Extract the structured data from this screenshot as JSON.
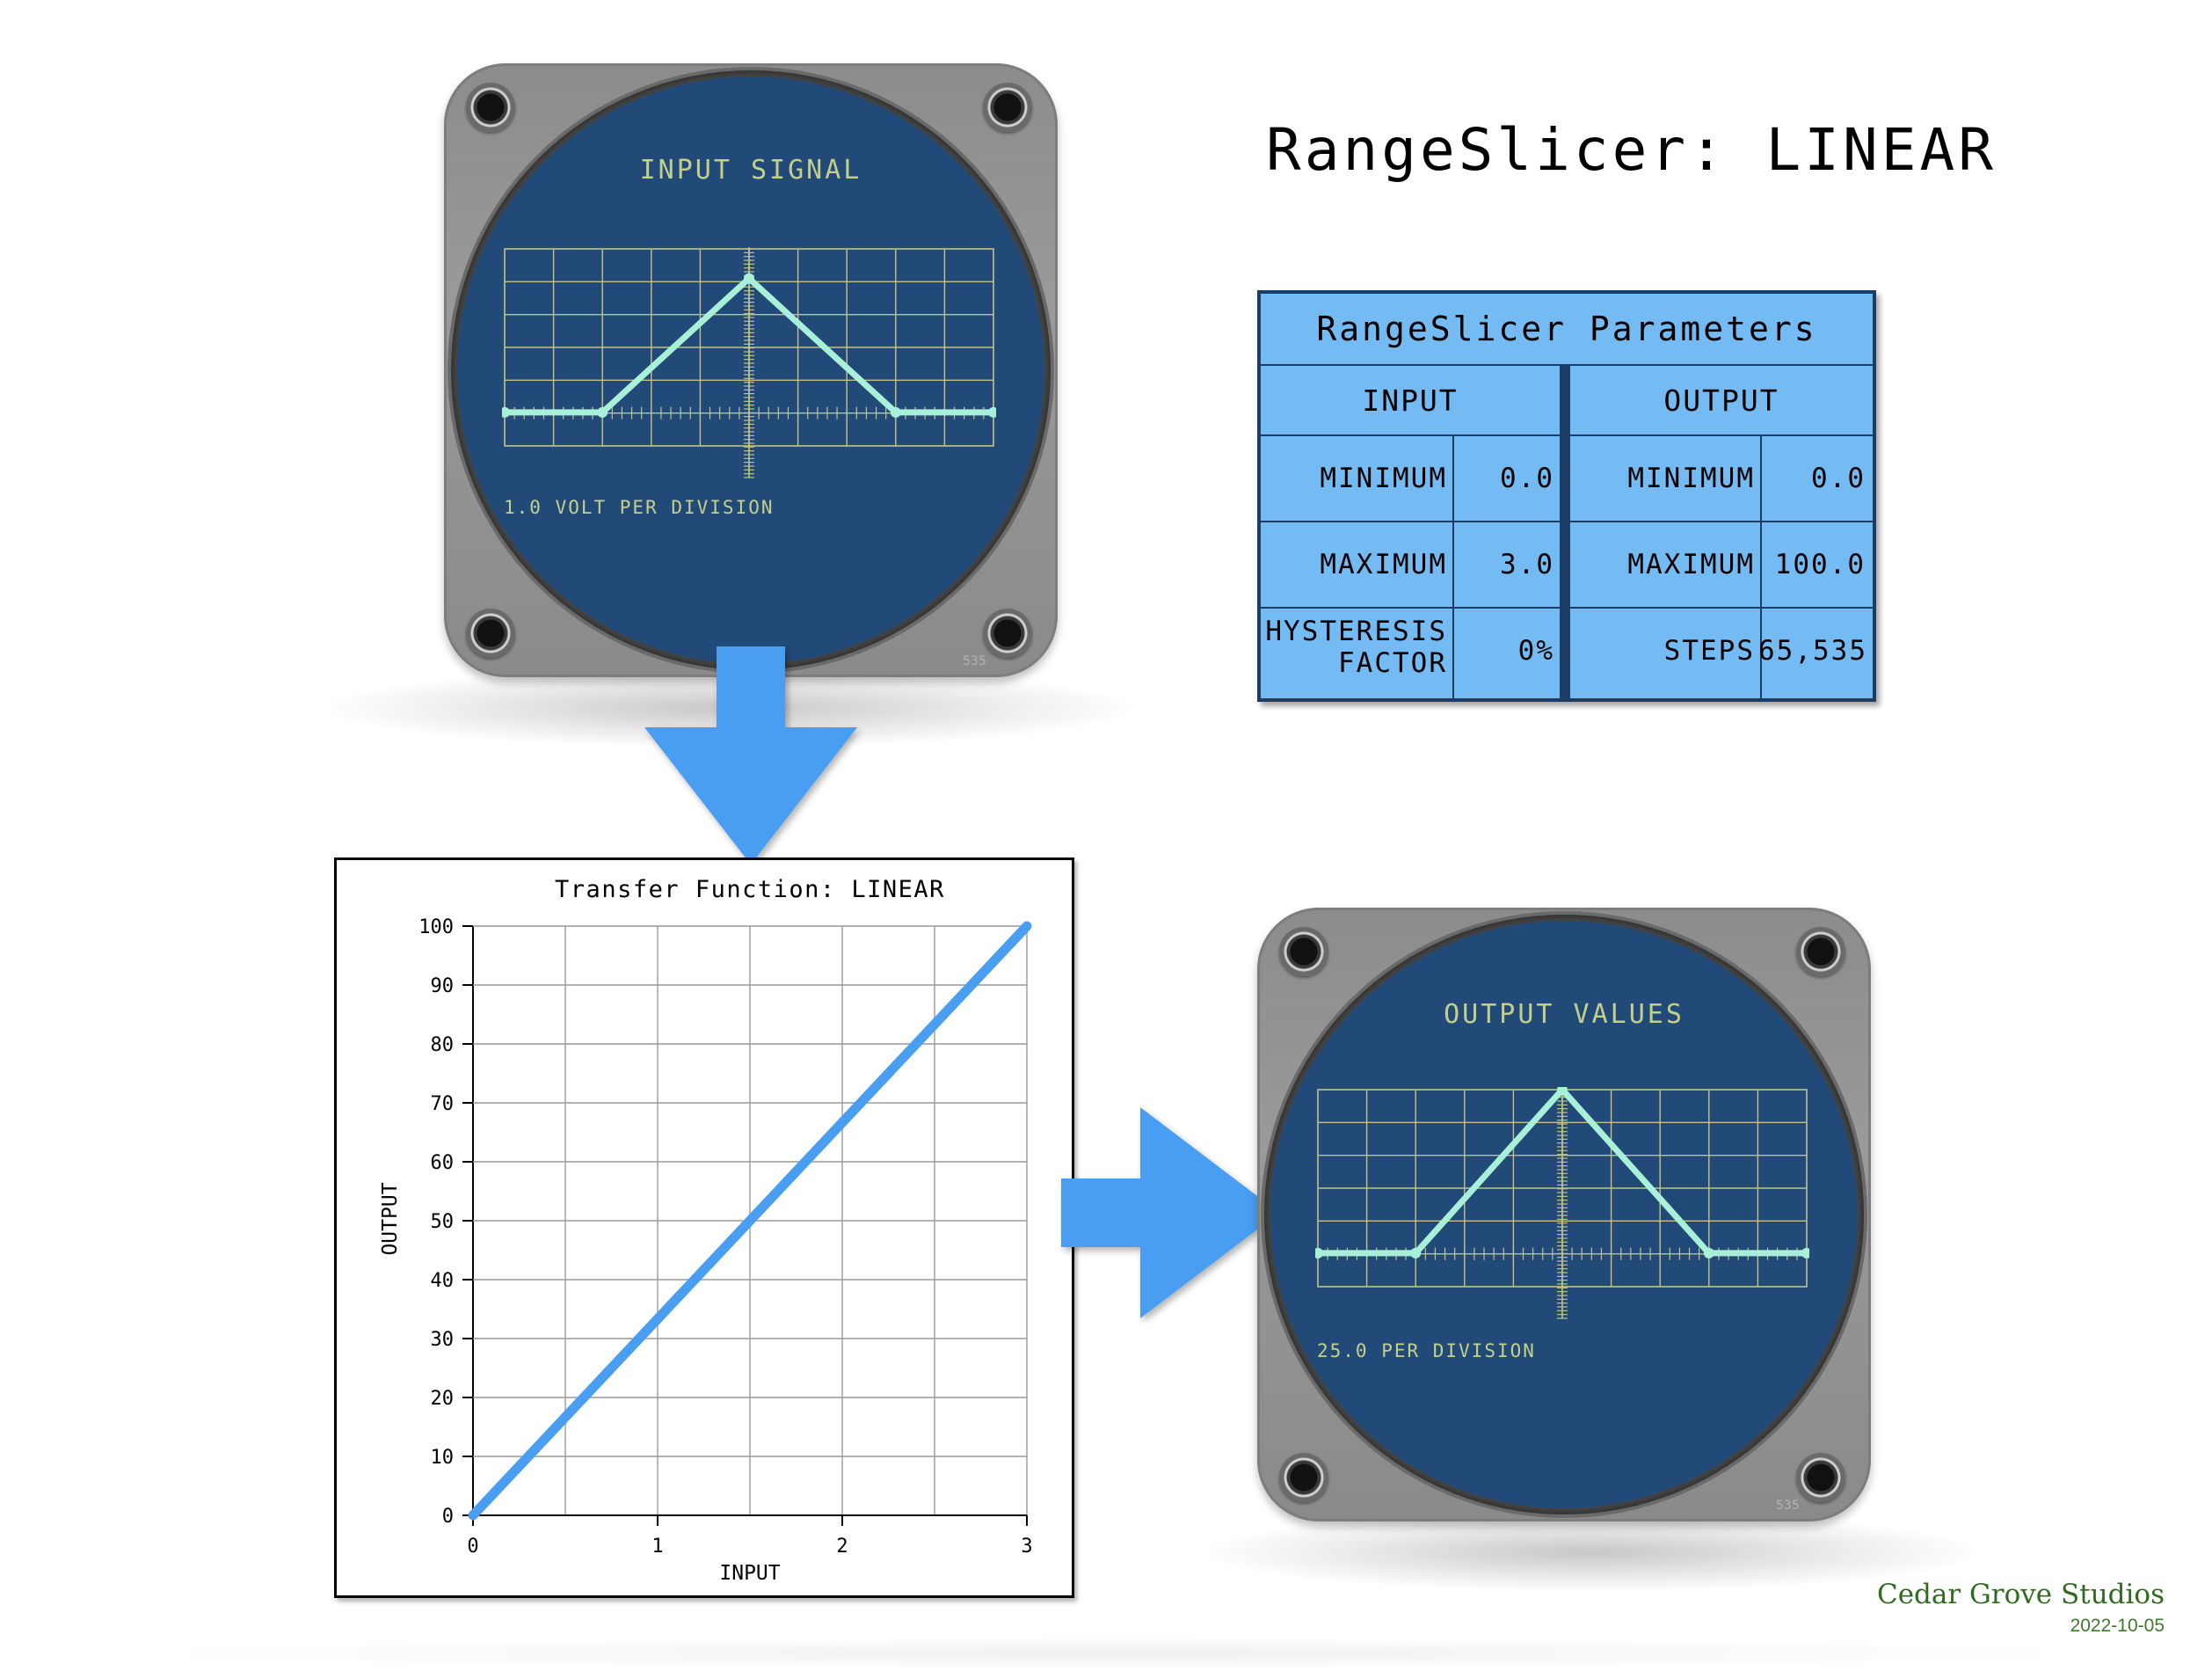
{
  "title": "RangeSlicer: LINEAR",
  "input_scope": {
    "title": "INPUT SIGNAL",
    "caption": "1.0 VOLT PER DIVISION",
    "model": "535",
    "trace_color": "#a8f0d8"
  },
  "output_scope": {
    "title": "OUTPUT VALUES",
    "caption": "25.0 PER DIVISION",
    "model": "535",
    "trace_color": "#a8f0d8"
  },
  "parameters": {
    "heading": "RangeSlicer Parameters",
    "input_header": "INPUT",
    "output_header": "OUTPUT",
    "rows": [
      {
        "in_label": "MINIMUM",
        "in_value": "0.0",
        "out_label": "MINIMUM",
        "out_value": "0.0"
      },
      {
        "in_label": "MAXIMUM",
        "in_value": "3.0",
        "out_label": "MAXIMUM",
        "out_value": "100.0"
      },
      {
        "in_label_1": "HYSTERESIS",
        "in_label_2": "FACTOR",
        "in_value": "0%",
        "out_label": "STEPS",
        "out_value": "65,535"
      }
    ]
  },
  "chart_data": {
    "type": "line",
    "title": "Transfer Function: LINEAR",
    "xlabel": "INPUT",
    "ylabel": "OUTPUT",
    "xlim": [
      0,
      3
    ],
    "ylim": [
      0,
      100
    ],
    "x_ticks": [
      "0",
      "1",
      "2",
      "3"
    ],
    "y_ticks": [
      "0",
      "10",
      "20",
      "30",
      "40",
      "50",
      "60",
      "70",
      "80",
      "90",
      "100"
    ],
    "grid": true,
    "series": [
      {
        "x": [
          0,
          3
        ],
        "y": [
          0,
          100
        ],
        "color": "#4a9ef2"
      }
    ]
  },
  "colors": {
    "arrow": "#4a9ef2",
    "screen": "#224a79",
    "grid": "#c4c28a",
    "table_bg": "#73bbf2"
  },
  "footer": {
    "studio": "Cedar Grove Studios",
    "date": "2022-10-05"
  }
}
